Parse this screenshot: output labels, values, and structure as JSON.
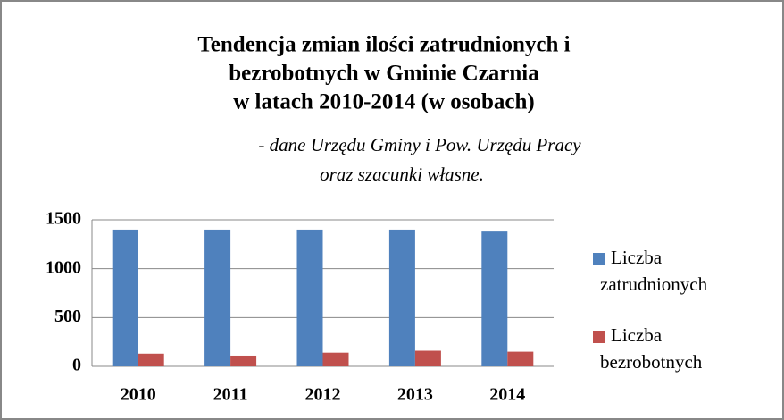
{
  "chart_data": {
    "type": "bar",
    "title": [
      "Tendencja zmian ilości zatrudnionych i",
      "bezrobotnych w Gminie Czarnia",
      "w latach 2010-2014 (w osobach)"
    ],
    "subtitle": [
      "- dane Urzędu Gminy i Pow. Urzędu Pracy",
      "oraz szacunki własne."
    ],
    "categories": [
      "2010",
      "2011",
      "2012",
      "2013",
      "2014"
    ],
    "series": [
      {
        "name": "Liczba zatrudnionych",
        "color": "#4f81bd",
        "values": [
          1400,
          1400,
          1400,
          1400,
          1380
        ]
      },
      {
        "name": "Liczba bezrobotnych",
        "color": "#c0504d",
        "values": [
          130,
          110,
          140,
          160,
          150
        ]
      }
    ],
    "ylim": [
      0,
      1500
    ],
    "yticks": [
      0,
      500,
      1000,
      1500
    ],
    "grid": true,
    "legend": "right"
  }
}
